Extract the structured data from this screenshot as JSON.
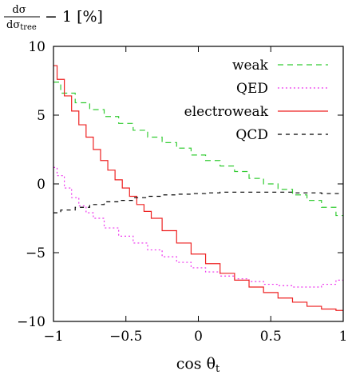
{
  "chart_data": {
    "type": "line",
    "ylabel_numerator": "dσ",
    "ylabel_denominator_main": "dσ",
    "ylabel_denominator_sub": "tree",
    "ylabel_suffix": "− 1 [%]",
    "xlabel_main": "cos θ",
    "xlabel_sub": "t",
    "xlim": [
      -1,
      1
    ],
    "ylim": [
      -10,
      10
    ],
    "xticks": [
      -1,
      -0.5,
      0,
      0.5,
      1
    ],
    "xtick_labels": [
      "−1",
      "−0.5",
      "0",
      "0.5",
      "1"
    ],
    "yticks": [
      -10,
      -5,
      0,
      5,
      10
    ],
    "ytick_labels": [
      "−10",
      "−5",
      "0",
      "5",
      "10"
    ],
    "legend_position": "top-right",
    "series": [
      {
        "name": "weak",
        "color": "#33cc33",
        "dash": "7,5",
        "x": [
          -1,
          -0.9,
          -0.8,
          -0.7,
          -0.6,
          -0.5,
          -0.4,
          -0.3,
          -0.2,
          -0.1,
          0,
          0.1,
          0.2,
          0.3,
          0.4,
          0.5,
          0.6,
          0.7,
          0.8,
          0.9,
          1
        ],
        "y": [
          7.4,
          6.6,
          5.9,
          5.4,
          4.9,
          4.4,
          3.9,
          3.4,
          3.0,
          2.6,
          2.1,
          1.7,
          1.3,
          0.9,
          0.4,
          0.0,
          -0.4,
          -0.8,
          -1.2,
          -1.7,
          -2.3
        ]
      },
      {
        "name": "QED",
        "color": "#ee33ee",
        "dash": "2,3",
        "x": [
          -1,
          -0.95,
          -0.9,
          -0.85,
          -0.8,
          -0.75,
          -0.7,
          -0.6,
          -0.5,
          -0.4,
          -0.3,
          -0.2,
          -0.1,
          0,
          0.1,
          0.2,
          0.3,
          0.4,
          0.5,
          0.6,
          0.7,
          0.8,
          0.9,
          1
        ],
        "y": [
          1.2,
          0.6,
          -0.3,
          -1.0,
          -1.6,
          -2.1,
          -2.5,
          -3.2,
          -3.8,
          -4.3,
          -4.8,
          -5.3,
          -5.7,
          -6.1,
          -6.4,
          -6.7,
          -6.9,
          -7.1,
          -7.3,
          -7.4,
          -7.5,
          -7.5,
          -7.3,
          -7.0
        ]
      },
      {
        "name": "electroweak",
        "color": "#ee2222",
        "dash": "",
        "x": [
          -1,
          -0.95,
          -0.9,
          -0.85,
          -0.8,
          -0.75,
          -0.7,
          -0.65,
          -0.6,
          -0.55,
          -0.5,
          -0.45,
          -0.4,
          -0.35,
          -0.3,
          -0.2,
          -0.1,
          0,
          0.1,
          0.2,
          0.3,
          0.4,
          0.5,
          0.6,
          0.7,
          0.8,
          0.9,
          1
        ],
        "y": [
          8.6,
          7.6,
          6.4,
          5.3,
          4.3,
          3.4,
          2.5,
          1.7,
          1.0,
          0.3,
          -0.3,
          -0.9,
          -1.5,
          -2.0,
          -2.5,
          -3.4,
          -4.3,
          -5.1,
          -5.8,
          -6.5,
          -7.0,
          -7.5,
          -7.9,
          -8.3,
          -8.6,
          -8.9,
          -9.1,
          -9.2
        ]
      },
      {
        "name": "QCD",
        "color": "#000000",
        "dash": "5,5",
        "x": [
          -1,
          -0.9,
          -0.8,
          -0.7,
          -0.6,
          -0.5,
          -0.4,
          -0.3,
          -0.2,
          -0.1,
          0,
          0.1,
          0.2,
          0.3,
          0.4,
          0.5,
          0.6,
          0.7,
          0.8,
          0.9,
          1
        ],
        "y": [
          -2.1,
          -1.9,
          -1.7,
          -1.5,
          -1.3,
          -1.2,
          -1.0,
          -0.9,
          -0.8,
          -0.75,
          -0.7,
          -0.65,
          -0.6,
          -0.6,
          -0.6,
          -0.6,
          -0.6,
          -0.65,
          -0.65,
          -0.7,
          -0.7
        ]
      }
    ]
  }
}
